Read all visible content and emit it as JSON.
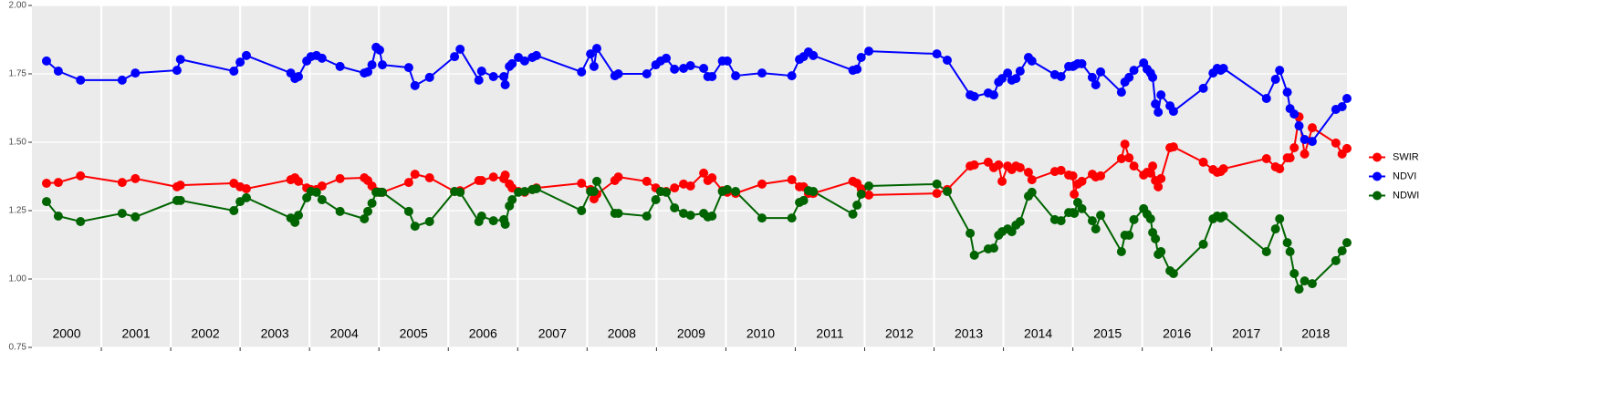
{
  "chart_data": {
    "type": "line",
    "legend": "right",
    "x": [
      2000.21,
      2000.38,
      2000.7,
      2001.3,
      2001.49,
      2002.09,
      2002.14,
      2002.91,
      2003.0,
      2003.09,
      2003.73,
      2003.79,
      2003.84,
      2003.96,
      2004.02,
      2004.1,
      2004.18,
      2004.44,
      2004.79,
      2004.84,
      2004.9,
      2004.96,
      2005.01,
      2005.05,
      2005.43,
      2005.52,
      2005.73,
      2006.09,
      2006.17,
      2006.44,
      2006.48,
      2006.65,
      2006.8,
      2006.82,
      2006.88,
      2006.92,
      2007.01,
      2007.1,
      2007.21,
      2007.27,
      2007.92,
      2008.05,
      2008.1,
      2008.14,
      2008.4,
      2008.45,
      2008.86,
      2008.99,
      2009.06,
      2009.14,
      2009.26,
      2009.39,
      2009.49,
      2009.68,
      2009.74,
      2009.8,
      2009.95,
      2010.02,
      2010.14,
      2010.52,
      2010.95,
      2011.06,
      2011.12,
      2011.19,
      2011.26,
      2011.83,
      2011.89,
      2011.95,
      2012.06,
      2013.04,
      2013.19,
      2013.52,
      2013.58,
      2013.78,
      2013.86,
      2013.93,
      2013.98,
      2014.06,
      2014.12,
      2014.18,
      2014.24,
      2014.36,
      2014.41,
      2014.74,
      2014.83,
      2014.94,
      2015.0,
      2015.02,
      2015.07,
      2015.13,
      2015.28,
      2015.33,
      2015.4,
      2015.7,
      2015.75,
      2015.81,
      2015.88,
      2016.02,
      2016.07,
      2016.12,
      2016.15,
      2016.19,
      2016.23,
      2016.27,
      2016.4,
      2016.45,
      2016.88,
      2017.02,
      2017.08,
      2017.13,
      2017.17,
      2017.79,
      2017.92,
      2017.98,
      2018.09,
      2018.13,
      2018.19,
      2018.26,
      2018.34,
      2018.45,
      2018.79,
      2018.88,
      2018.95
    ],
    "series": [
      {
        "name": "SWIR",
        "color": "#ff0000",
        "values": [
          1.35,
          1.353,
          1.377,
          1.353,
          1.367,
          1.337,
          1.343,
          1.35,
          1.337,
          1.33,
          1.363,
          1.37,
          1.357,
          1.333,
          1.327,
          1.327,
          1.34,
          1.367,
          1.37,
          1.36,
          1.34,
          1.32,
          1.317,
          1.317,
          1.353,
          1.383,
          1.37,
          1.32,
          1.323,
          1.36,
          1.36,
          1.373,
          1.367,
          1.38,
          1.347,
          1.333,
          1.32,
          1.317,
          1.327,
          1.333,
          1.35,
          1.327,
          1.293,
          1.31,
          1.36,
          1.373,
          1.357,
          1.333,
          1.32,
          1.32,
          1.333,
          1.347,
          1.34,
          1.387,
          1.36,
          1.37,
          1.323,
          1.317,
          1.313,
          1.347,
          1.363,
          1.337,
          1.337,
          1.313,
          1.313,
          1.357,
          1.35,
          1.33,
          1.307,
          1.313,
          1.327,
          1.413,
          1.417,
          1.427,
          1.407,
          1.417,
          1.357,
          1.413,
          1.4,
          1.413,
          1.407,
          1.39,
          1.363,
          1.393,
          1.397,
          1.38,
          1.377,
          1.31,
          1.347,
          1.357,
          1.383,
          1.373,
          1.377,
          1.44,
          1.493,
          1.443,
          1.413,
          1.38,
          1.39,
          1.387,
          1.413,
          1.36,
          1.337,
          1.367,
          1.48,
          1.483,
          1.427,
          1.4,
          1.39,
          1.393,
          1.403,
          1.44,
          1.41,
          1.403,
          1.443,
          1.443,
          1.48,
          1.593,
          1.457,
          1.553,
          1.497,
          1.457,
          1.477
        ]
      },
      {
        "name": "NDVI",
        "color": "#0000ff",
        "values": [
          1.797,
          1.76,
          1.727,
          1.727,
          1.753,
          1.763,
          1.803,
          1.76,
          1.793,
          1.817,
          1.753,
          1.733,
          1.74,
          1.797,
          1.813,
          1.817,
          1.807,
          1.777,
          1.753,
          1.757,
          1.783,
          1.847,
          1.837,
          1.783,
          1.773,
          1.707,
          1.737,
          1.813,
          1.84,
          1.727,
          1.76,
          1.74,
          1.74,
          1.71,
          1.777,
          1.787,
          1.81,
          1.797,
          1.81,
          1.817,
          1.757,
          1.823,
          1.777,
          1.843,
          1.743,
          1.75,
          1.75,
          1.783,
          1.797,
          1.807,
          1.767,
          1.77,
          1.78,
          1.77,
          1.74,
          1.74,
          1.797,
          1.797,
          1.743,
          1.753,
          1.743,
          1.803,
          1.813,
          1.83,
          1.817,
          1.763,
          1.767,
          1.81,
          1.833,
          1.823,
          1.8,
          1.673,
          1.667,
          1.68,
          1.673,
          1.72,
          1.733,
          1.753,
          1.727,
          1.733,
          1.76,
          1.81,
          1.797,
          1.747,
          1.74,
          1.777,
          1.777,
          1.78,
          1.787,
          1.787,
          1.737,
          1.71,
          1.757,
          1.683,
          1.72,
          1.737,
          1.763,
          1.79,
          1.767,
          1.753,
          1.737,
          1.64,
          1.61,
          1.673,
          1.633,
          1.613,
          1.697,
          1.753,
          1.77,
          1.763,
          1.77,
          1.66,
          1.73,
          1.763,
          1.683,
          1.623,
          1.603,
          1.56,
          1.51,
          1.503,
          1.62,
          1.63,
          1.66
        ]
      },
      {
        "name": "NDWI",
        "color": "#006400",
        "values": [
          1.283,
          1.23,
          1.21,
          1.24,
          1.227,
          1.287,
          1.287,
          1.25,
          1.283,
          1.297,
          1.223,
          1.207,
          1.233,
          1.297,
          1.32,
          1.317,
          1.29,
          1.247,
          1.22,
          1.247,
          1.277,
          1.317,
          1.317,
          1.317,
          1.247,
          1.193,
          1.21,
          1.32,
          1.317,
          1.21,
          1.23,
          1.213,
          1.217,
          1.2,
          1.267,
          1.29,
          1.317,
          1.32,
          1.327,
          1.33,
          1.25,
          1.32,
          1.32,
          1.357,
          1.24,
          1.24,
          1.23,
          1.29,
          1.32,
          1.317,
          1.26,
          1.24,
          1.233,
          1.24,
          1.227,
          1.23,
          1.32,
          1.327,
          1.32,
          1.223,
          1.223,
          1.28,
          1.287,
          1.323,
          1.32,
          1.237,
          1.27,
          1.31,
          1.34,
          1.347,
          1.32,
          1.167,
          1.087,
          1.11,
          1.113,
          1.16,
          1.173,
          1.183,
          1.173,
          1.197,
          1.21,
          1.303,
          1.317,
          1.217,
          1.213,
          1.243,
          1.243,
          1.24,
          1.28,
          1.257,
          1.213,
          1.183,
          1.233,
          1.1,
          1.16,
          1.16,
          1.217,
          1.257,
          1.237,
          1.22,
          1.17,
          1.147,
          1.09,
          1.1,
          1.03,
          1.02,
          1.127,
          1.22,
          1.23,
          1.223,
          1.23,
          1.1,
          1.183,
          1.22,
          1.133,
          1.1,
          1.02,
          0.963,
          0.993,
          0.983,
          1.067,
          1.103,
          1.133
        ]
      }
    ],
    "xlim": [
      2000,
      2018.95
    ],
    "xgrid": [
      2001,
      2002,
      2003,
      2004,
      2005,
      2006,
      2007,
      2008,
      2009,
      2010,
      2011,
      2012,
      2013,
      2014,
      2015,
      2016,
      2017,
      2018
    ],
    "year_labels": [
      {
        "value": 2000.5,
        "label": "2000"
      },
      {
        "value": 2001.5,
        "label": "2001"
      },
      {
        "value": 2002.5,
        "label": "2002"
      },
      {
        "value": 2003.5,
        "label": "2003"
      },
      {
        "value": 2004.5,
        "label": "2004"
      },
      {
        "value": 2005.5,
        "label": "2005"
      },
      {
        "value": 2006.5,
        "label": "2006"
      },
      {
        "value": 2007.5,
        "label": "2007"
      },
      {
        "value": 2008.5,
        "label": "2008"
      },
      {
        "value": 2009.5,
        "label": "2009"
      },
      {
        "value": 2010.5,
        "label": "2010"
      },
      {
        "value": 2011.5,
        "label": "2011"
      },
      {
        "value": 2012.5,
        "label": "2012"
      },
      {
        "value": 2013.5,
        "label": "2013"
      },
      {
        "value": 2014.5,
        "label": "2014"
      },
      {
        "value": 2015.5,
        "label": "2015"
      },
      {
        "value": 2016.5,
        "label": "2016"
      },
      {
        "value": 2017.5,
        "label": "2017"
      },
      {
        "value": 2018.5,
        "label": "2018"
      }
    ],
    "ylim": [
      0.75,
      2.0
    ],
    "yticks": [
      {
        "value": 0.75,
        "label": "0.75"
      },
      {
        "value": 1.0,
        "label": "1.00"
      },
      {
        "value": 1.25,
        "label": "1.25"
      },
      {
        "value": 1.5,
        "label": "1.50"
      },
      {
        "value": 1.75,
        "label": "1.75"
      },
      {
        "value": 2.0,
        "label": "2.00"
      }
    ],
    "grid": true
  }
}
